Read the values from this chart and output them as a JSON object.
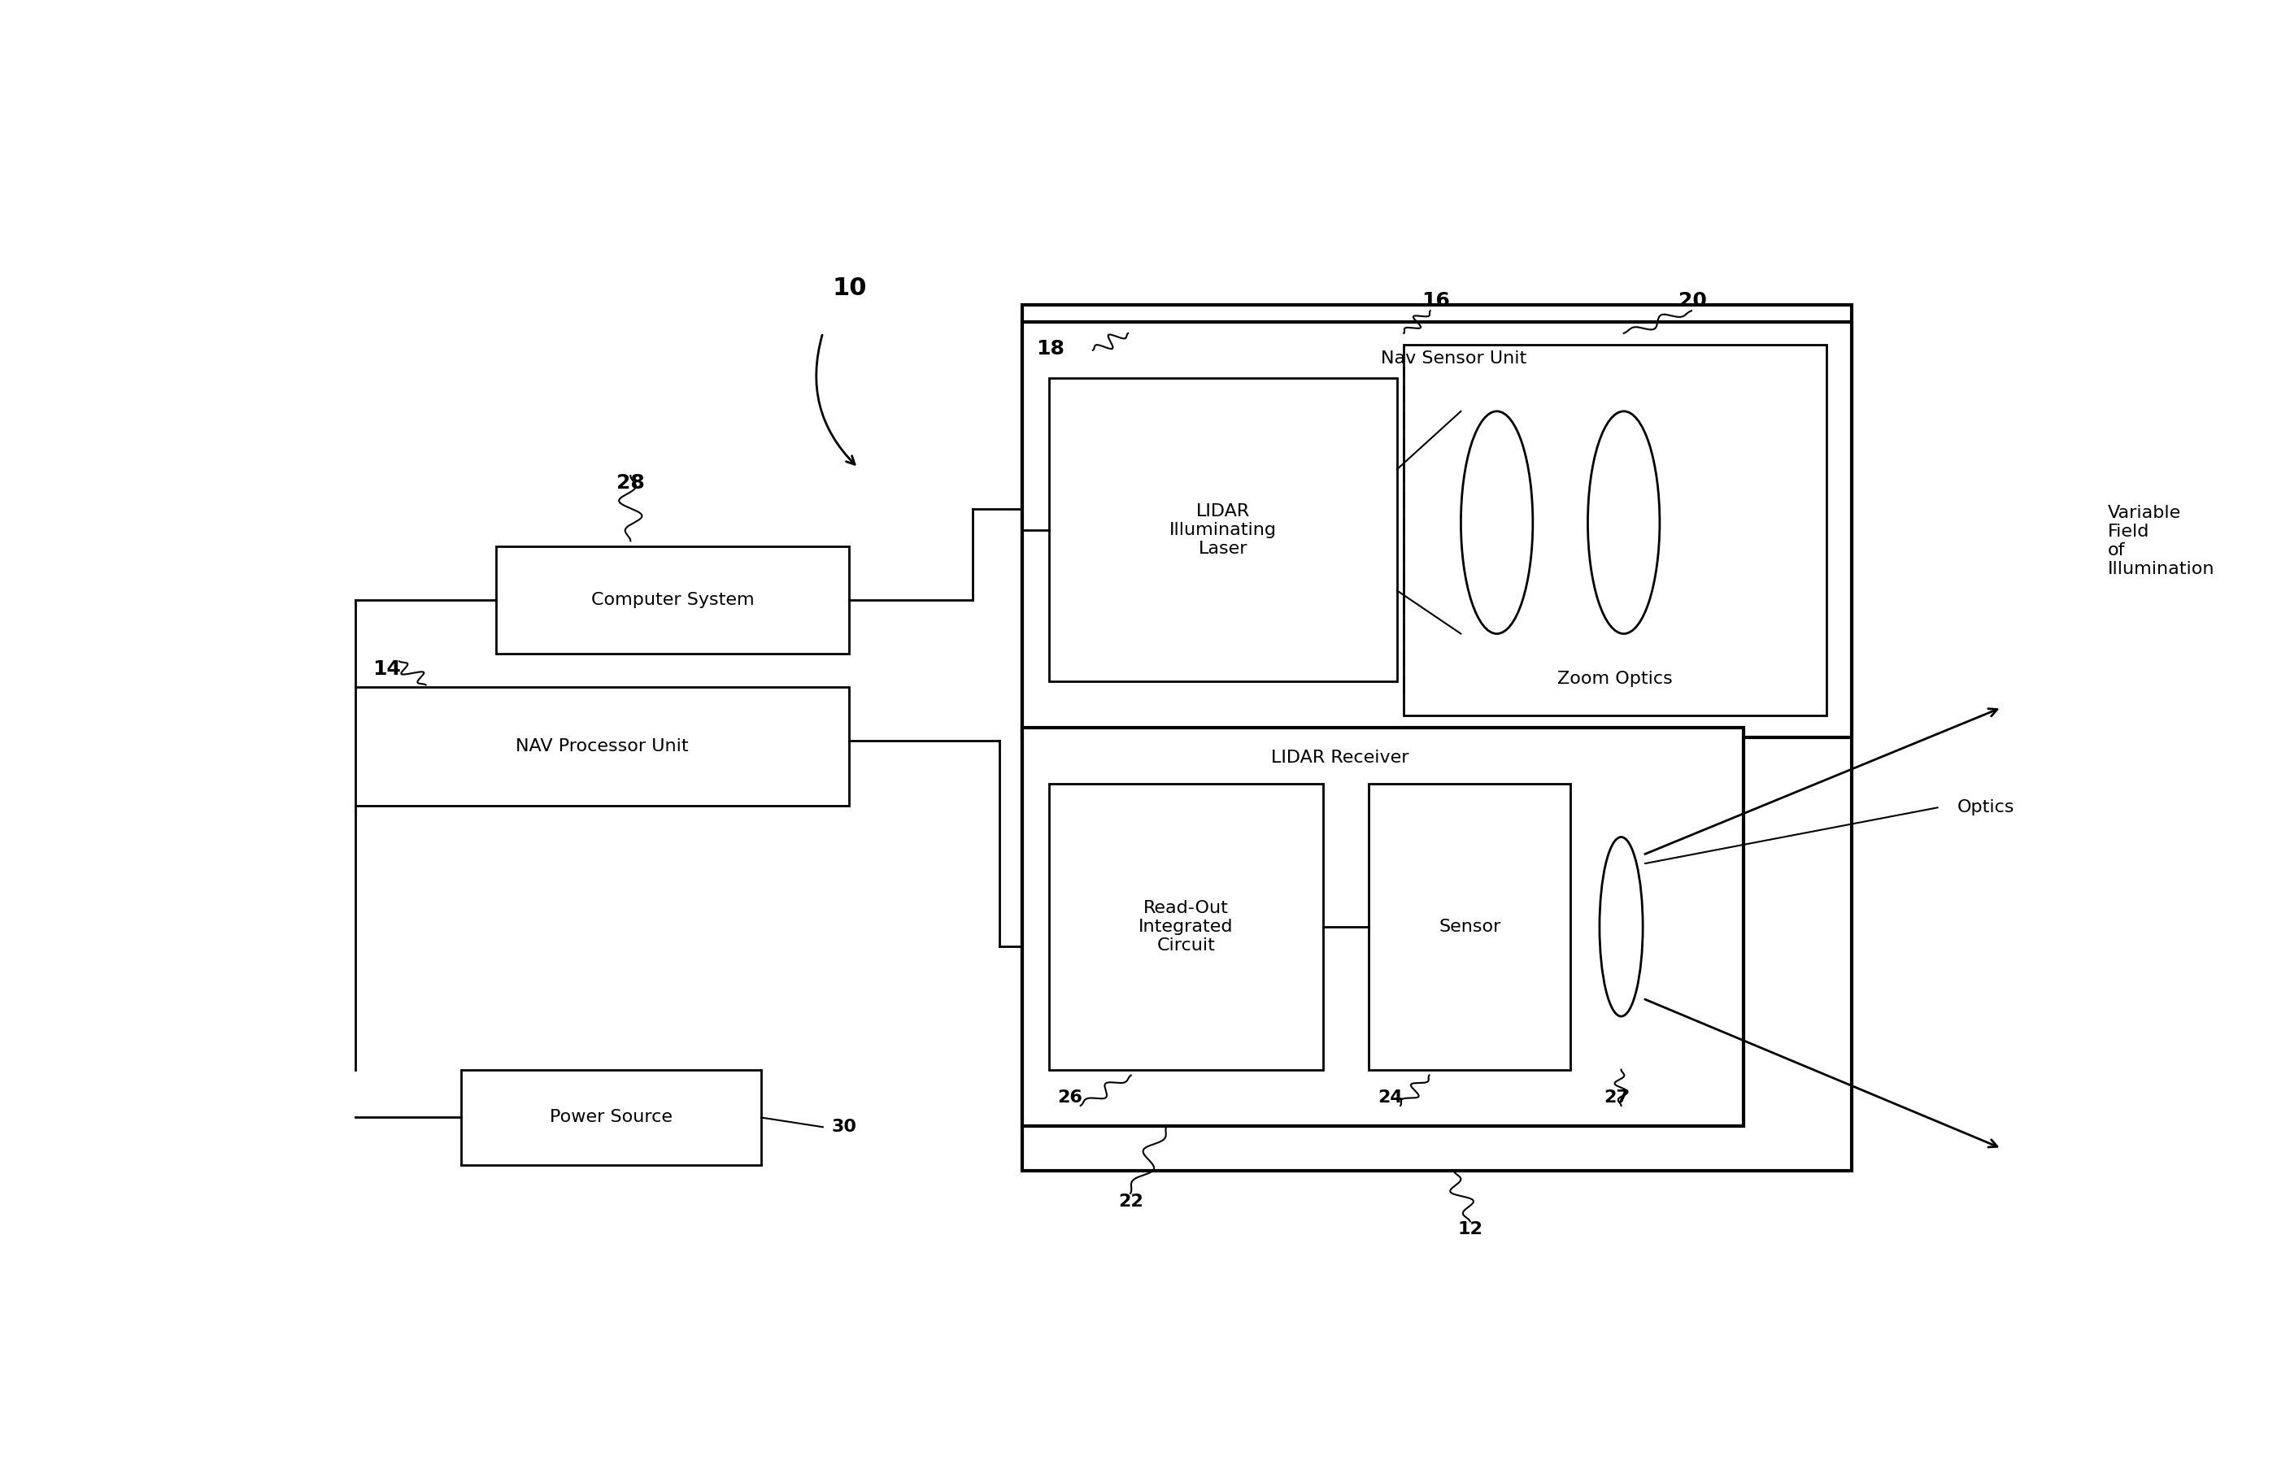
{
  "bg_color": "#ffffff",
  "lw_main": 2.5,
  "lw_inner": 2.0,
  "fs_text": 16,
  "fs_label": 18,
  "fs_label_sm": 15,
  "label_10": "10",
  "label_12": "12",
  "label_14": "14",
  "label_16": "16",
  "label_18": "18",
  "label_20": "20",
  "label_22": "22",
  "label_24": "24",
  "label_26": "26",
  "label_27": "27",
  "label_28": "28",
  "label_30": "30",
  "text_nav_sensor_unit": "Nav Sensor Unit",
  "text_lidar_laser": "LIDAR\nIlluminating\nLaser",
  "text_zoom_optics": "Zoom Optics",
  "text_lidar_receiver": "LIDAR Receiver",
  "text_roic": "Read-Out\nIntegrated\nCircuit",
  "text_sensor": "Sensor",
  "text_optics": "Optics",
  "text_computer": "Computer System",
  "text_nav_processor": "NAV Processor Unit",
  "text_power": "Power Source",
  "text_variable_field": "Variable\nField\nof\nIllumination"
}
